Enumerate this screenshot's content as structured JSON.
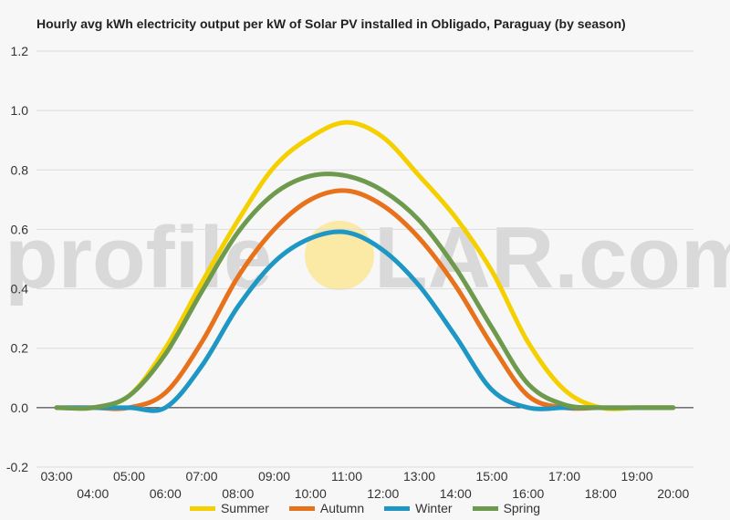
{
  "chart_data": {
    "type": "line",
    "title": "Hourly avg kWh electricity output per kW of Solar PV installed in Obligado, Paraguay (by season)",
    "xlabel": "",
    "ylabel": "",
    "ylim": [
      -0.2,
      1.2
    ],
    "yticks": [
      "1.2",
      "1.0",
      "0.8",
      "0.6",
      "0.4",
      "0.2",
      "0.0",
      "-0.2"
    ],
    "ytick_values": [
      1.2,
      1.0,
      0.8,
      0.6,
      0.4,
      0.2,
      0.0,
      -0.2
    ],
    "x": [
      "03:00",
      "04:00",
      "05:00",
      "06:00",
      "07:00",
      "08:00",
      "09:00",
      "10:00",
      "11:00",
      "12:00",
      "13:00",
      "14:00",
      "15:00",
      "16:00",
      "17:00",
      "18:00",
      "19:00",
      "20:00"
    ],
    "grid": true,
    "legend_position": "bottom",
    "series": [
      {
        "name": "Summer",
        "color": "#f5d000",
        "values": [
          0,
          0,
          0.04,
          0.2,
          0.42,
          0.63,
          0.81,
          0.91,
          0.96,
          0.91,
          0.78,
          0.64,
          0.46,
          0.22,
          0.06,
          0,
          0,
          0
        ]
      },
      {
        "name": "Autumn",
        "color": "#e8711c",
        "values": [
          0,
          0,
          0,
          0.05,
          0.22,
          0.44,
          0.6,
          0.7,
          0.73,
          0.68,
          0.57,
          0.41,
          0.21,
          0.04,
          0,
          0,
          0,
          0
        ]
      },
      {
        "name": "Winter",
        "color": "#1f97c4",
        "values": [
          0,
          0,
          0,
          0,
          0.14,
          0.34,
          0.49,
          0.57,
          0.59,
          0.53,
          0.41,
          0.24,
          0.06,
          0,
          0,
          0,
          0,
          0
        ]
      },
      {
        "name": "Spring",
        "color": "#6e9a4e",
        "values": [
          0,
          0,
          0.04,
          0.18,
          0.39,
          0.59,
          0.72,
          0.78,
          0.78,
          0.73,
          0.63,
          0.47,
          0.27,
          0.08,
          0.01,
          0,
          0,
          0
        ]
      }
    ]
  },
  "watermark": {
    "left_text": "profile",
    "right_text": "LAR.com",
    "sun_color": "#fbe9a6"
  }
}
